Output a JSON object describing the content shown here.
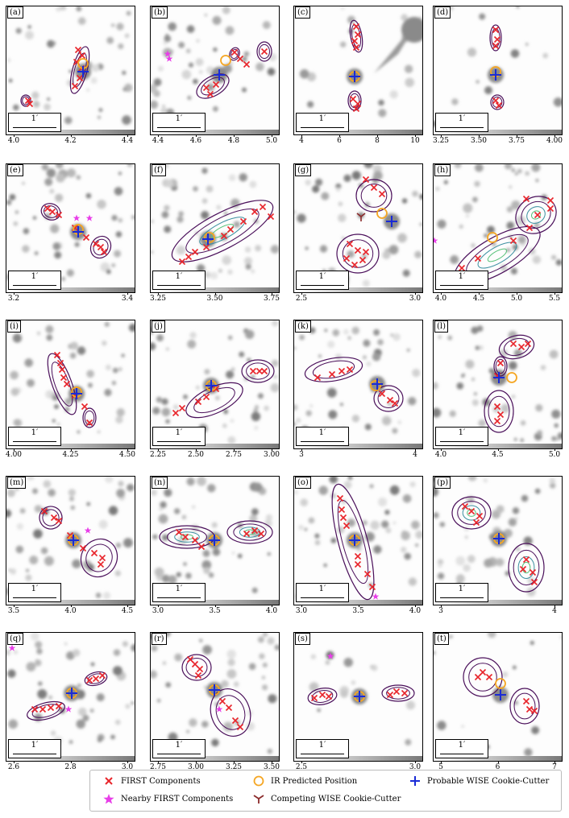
{
  "scale_bar_label": "1′",
  "colors": {
    "first_component": "#e8252b",
    "nearby_first": "#e83ee8",
    "ir_position": "#f5a623",
    "wise_cutter": "#1a2bd6",
    "competing_wise": "#8b2a2a",
    "contour_outer": "#4a0f5a",
    "contour_mid": "#3b8fa0",
    "contour_inner": "#57c27a"
  },
  "legend": {
    "first": "FIRST Components",
    "nearby": "Nearby FIRST Components",
    "ir": "IR Predicted Position",
    "competing": "Competing WISE Cookie-Cutter",
    "probable": "Probable WISE Cookie-Cutter"
  },
  "panels": [
    {
      "label": "(a)",
      "ticks": [
        "4.0",
        "4.2",
        "4.4"
      ]
    },
    {
      "label": "(b)",
      "ticks": [
        "4.4",
        "4.6",
        "4.8",
        "5.0"
      ]
    },
    {
      "label": "(c)",
      "ticks": [
        "4",
        "6",
        "8",
        "10"
      ]
    },
    {
      "label": "(d)",
      "ticks": [
        "3.25",
        "3.50",
        "3.75",
        "4.00"
      ]
    },
    {
      "label": "(e)",
      "ticks": [
        "3.2",
        "3.4"
      ]
    },
    {
      "label": "(f)",
      "ticks": [
        "3.25",
        "3.50",
        "3.75"
      ]
    },
    {
      "label": "(g)",
      "ticks": [
        "2.5",
        "3.0"
      ]
    },
    {
      "label": "(h)",
      "ticks": [
        "4.0",
        "4.5",
        "5.0",
        "5.5"
      ]
    },
    {
      "label": "(i)",
      "ticks": [
        "4.00",
        "4.25",
        "4.50"
      ]
    },
    {
      "label": "(j)",
      "ticks": [
        "2.25",
        "2.50",
        "2.75",
        "3.00"
      ]
    },
    {
      "label": "(k)",
      "ticks": [
        "3",
        "4"
      ]
    },
    {
      "label": "(l)",
      "ticks": [
        "4.0",
        "4.5",
        "5.0"
      ]
    },
    {
      "label": "(m)",
      "ticks": [
        "3.5",
        "4.0",
        "4.5"
      ]
    },
    {
      "label": "(n)",
      "ticks": [
        "3.0",
        "3.5",
        "4.0"
      ]
    },
    {
      "label": "(o)",
      "ticks": [
        "3.0",
        "3.5",
        "4.0"
      ]
    },
    {
      "label": "(p)",
      "ticks": [
        "3",
        "4"
      ]
    },
    {
      "label": "(q)",
      "ticks": [
        "2.6",
        "2.8",
        "3.0"
      ]
    },
    {
      "label": "(r)",
      "ticks": [
        "2.75",
        "3.00",
        "3.25",
        "3.50"
      ]
    },
    {
      "label": "(s)",
      "ticks": [
        "2.5",
        "3.0"
      ]
    },
    {
      "label": "(t)",
      "ticks": [
        "5",
        "6",
        "7"
      ]
    }
  ]
}
